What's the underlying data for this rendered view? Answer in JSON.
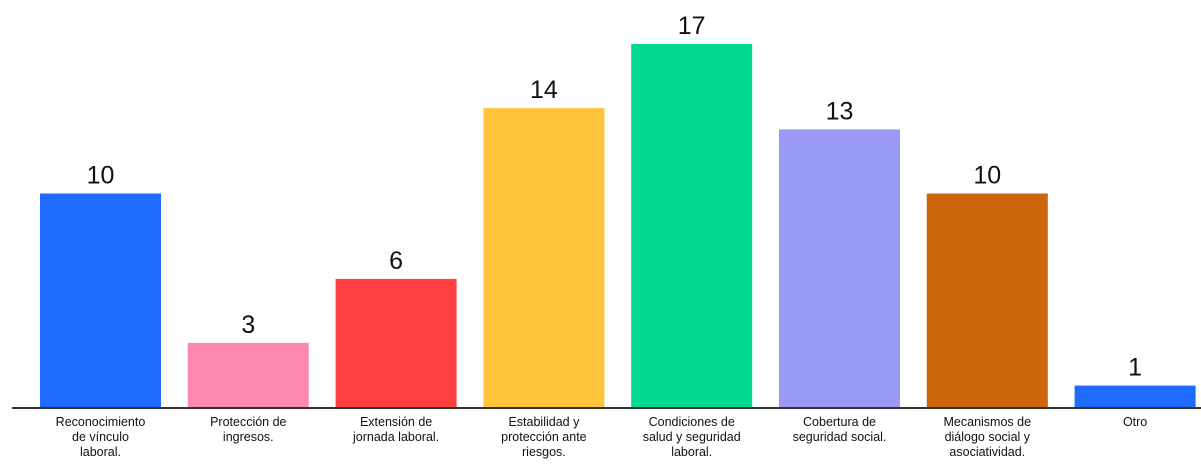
{
  "chart_data": {
    "type": "bar",
    "categories": [
      [
        "Reconocimiento",
        "de vínculo",
        "laboral."
      ],
      [
        "Protección de",
        "ingresos."
      ],
      [
        "Extensión de",
        "jornada laboral."
      ],
      [
        "Estabilidad y",
        "protección ante",
        "riesgos."
      ],
      [
        "Condiciones de",
        "salud y seguridad",
        "laboral."
      ],
      [
        "Cobertura de",
        "seguridad social."
      ],
      [
        "Mecanismos de",
        "diálogo social y",
        "asociatividad."
      ],
      [
        "Otro"
      ]
    ],
    "values": [
      10,
      3,
      6,
      14,
      17,
      13,
      10,
      1
    ],
    "colors": [
      "#1f6bff",
      "#ff88b2",
      "#ff4040",
      "#ffc43a",
      "#00d98f",
      "#9a9af5",
      "#cc650c",
      "#1f6bff"
    ],
    "data_labels": [
      "10",
      "3",
      "6",
      "14",
      "17",
      "13",
      "10",
      "1"
    ],
    "ylim": [
      0,
      17
    ],
    "grid": false,
    "legend": "none"
  }
}
